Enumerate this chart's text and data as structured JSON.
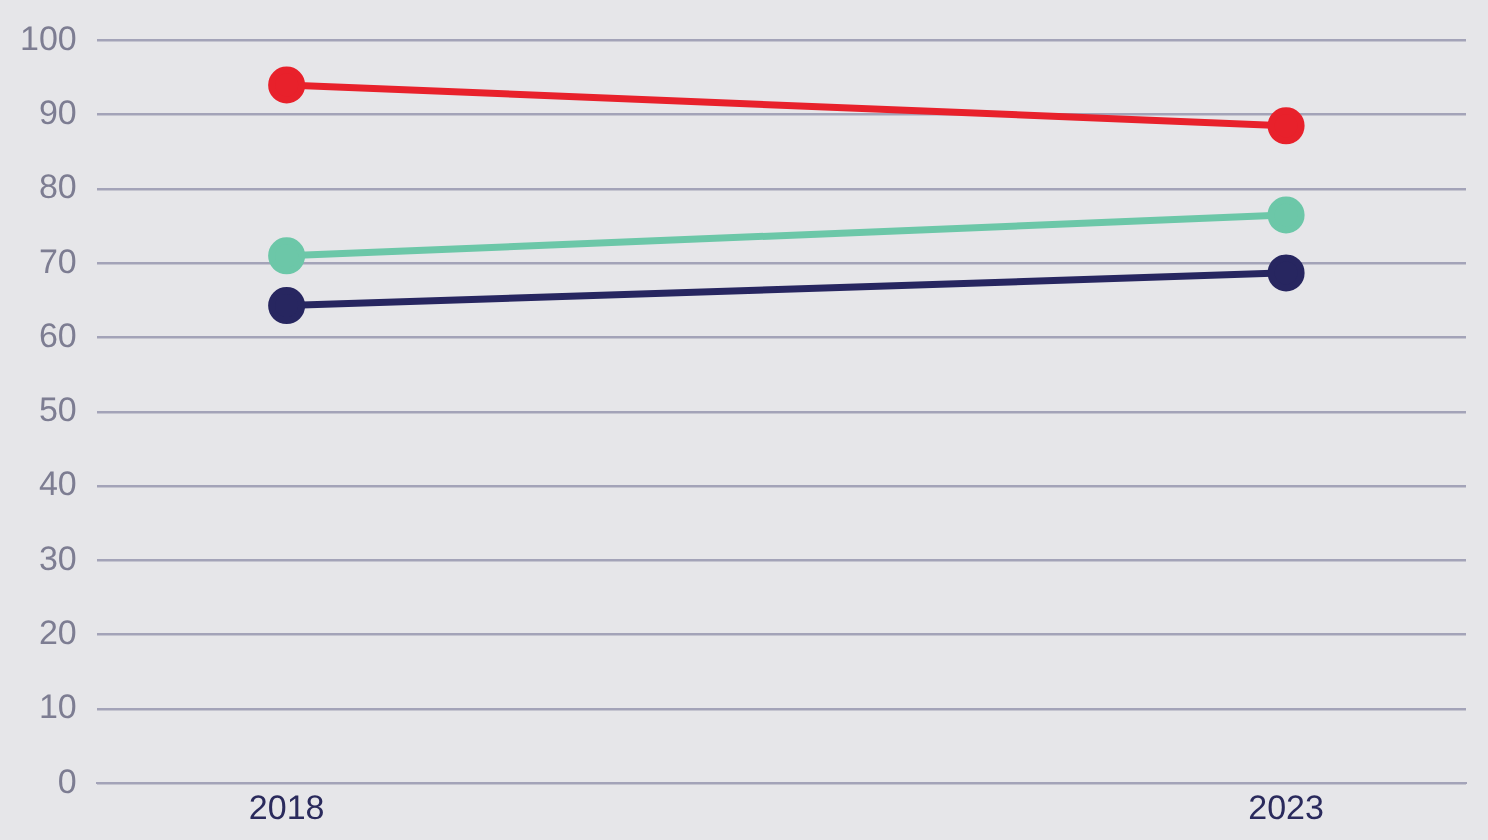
{
  "chart_data": {
    "type": "line",
    "x": [
      2018,
      2023
    ],
    "xlim": [
      2017.05,
      2023.9
    ],
    "xticks": [
      2018,
      2023
    ],
    "ylim": [
      0,
      100
    ],
    "yticks": [
      0,
      10,
      20,
      30,
      40,
      50,
      60,
      70,
      80,
      90,
      100
    ],
    "grid": "y",
    "legend": false,
    "marker": "circle",
    "line_style": "solid",
    "series": [
      {
        "color": "#e8212b",
        "values": [
          94,
          88.5
        ]
      },
      {
        "color": "#6cc7a8",
        "values": [
          71,
          76.5
        ]
      },
      {
        "color": "#272660",
        "values": [
          64.3,
          68.7
        ]
      }
    ]
  }
}
